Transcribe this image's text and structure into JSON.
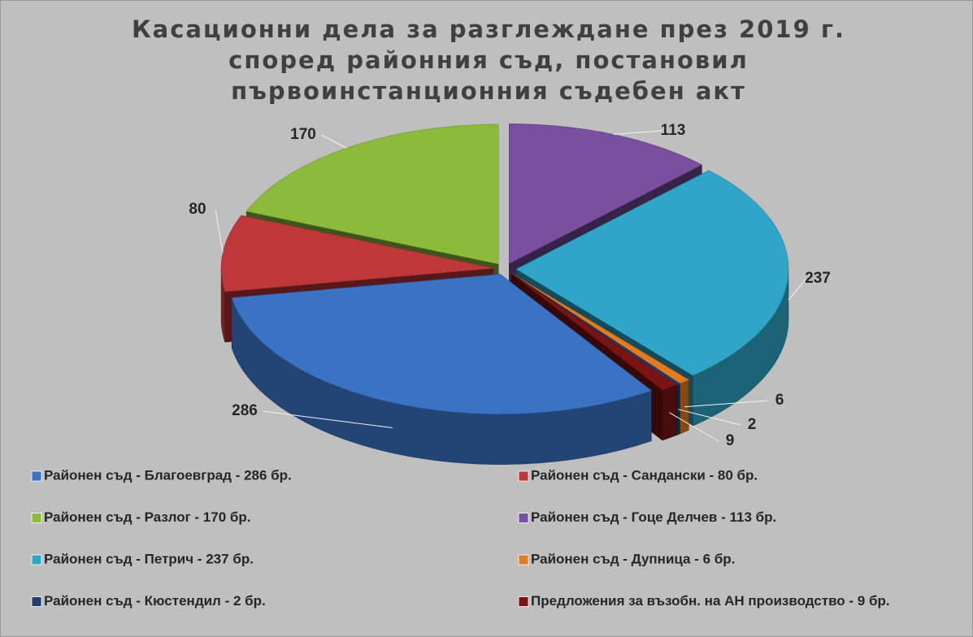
{
  "chart_data": {
    "type": "pie",
    "title": "Касационни дела за разглеждане през 2019 г. според районния съд, постановил първоинстанционния съдебен акт",
    "categories": [
      "Районен съд - Благоевград - 286 бр.",
      "Районен съд - Сандански - 80 бр.",
      "Районен съд - Разлог - 170 бр.",
      "Районен съд - Гоце Делчев - 113 бр.",
      "Районен съд - Петрич - 237 бр.",
      "Районен съд - Дупница - 6 бр.",
      "Районен съд - Кюстендил - 2 бр.",
      "Предложения за възобн. на АН производство - 9 бр."
    ],
    "values": [
      286,
      80,
      170,
      113,
      237,
      6,
      2,
      9
    ],
    "colors": [
      "#3a73c4",
      "#c0373a",
      "#8cbb3c",
      "#7a4fa0",
      "#2fa6c8",
      "#e07b1f",
      "#1f3d6b",
      "#7a1414"
    ],
    "legend": "bottom"
  }
}
